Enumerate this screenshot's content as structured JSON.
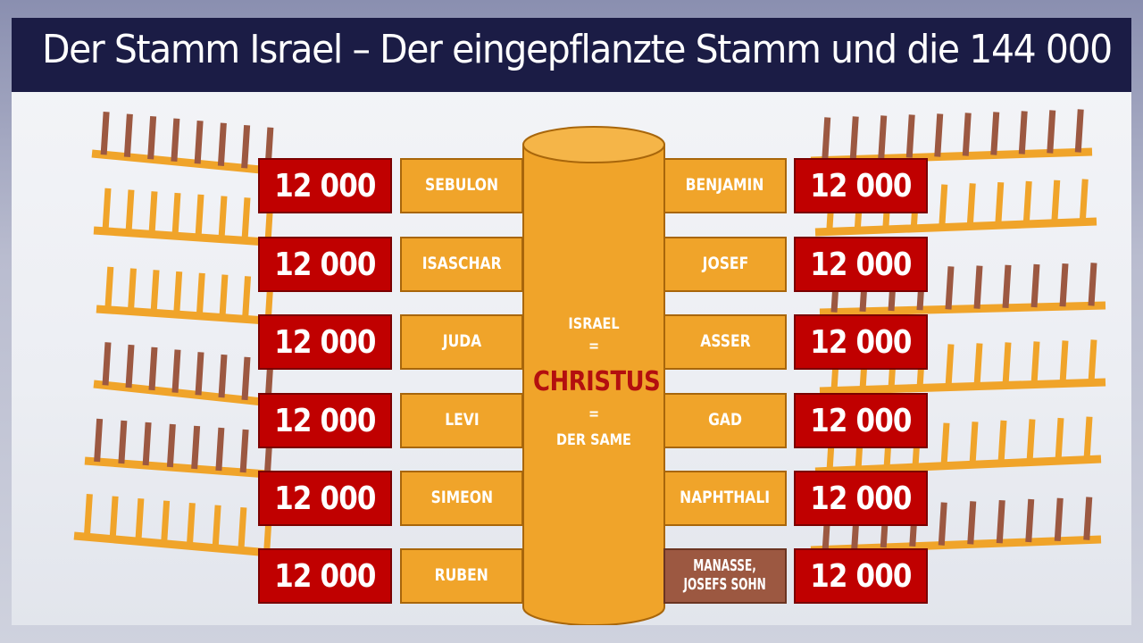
{
  "title": "Der Stamm Israel – Der eingepflanzte Stamm und die 144 000",
  "pillar": {
    "line1": "ISRAEL",
    "eq1": "=",
    "center": "CHRISTUS",
    "eq2": "=",
    "line3": "DER SAME"
  },
  "left_tribes": [
    {
      "count": "12 000",
      "name": "SEBULON"
    },
    {
      "count": "12 000",
      "name": "ISASCHAR"
    },
    {
      "count": "12 000",
      "name": "JUDA"
    },
    {
      "count": "12 000",
      "name": "LEVI"
    },
    {
      "count": "12 000",
      "name": "SIMEON"
    },
    {
      "count": "12 000",
      "name": "RUBEN"
    }
  ],
  "right_tribes": [
    {
      "count": "12 000",
      "name": "BENJAMIN"
    },
    {
      "count": "12 000",
      "name": "JOSEF"
    },
    {
      "count": "12 000",
      "name": "ASSER"
    },
    {
      "count": "12 000",
      "name": "GAD"
    },
    {
      "count": "12 000",
      "name": "NAPHTHALI"
    },
    {
      "count": "12 000",
      "name_line1": "MANASSE,",
      "name_line2": "JOSEFS SOHN"
    }
  ],
  "colors": {
    "title_bar": "#1b1c45",
    "count_box": "#c00000",
    "tribe_box": "#f0a42a",
    "manasse_box": "#9c5841",
    "pillar": "#f0a42a",
    "christus_text": "#b30f0f",
    "branch_orange": "#f0a42a",
    "branch_brown": "#9c5841"
  }
}
